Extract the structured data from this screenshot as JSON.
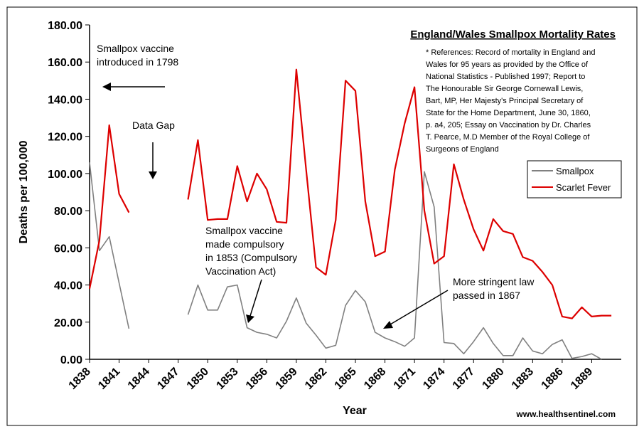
{
  "chart_data": {
    "type": "line",
    "title": "England/Wales Smallpox Mortality Rates",
    "xlabel": "Year",
    "ylabel": "Deaths per 100,000",
    "xlim": [
      1838,
      1892
    ],
    "ylim": [
      0,
      180
    ],
    "yticks": [
      "0.00",
      "20.00",
      "40.00",
      "60.00",
      "80.00",
      "100.00",
      "120.00",
      "140.00",
      "160.00",
      "180.00"
    ],
    "xticks": [
      "1838",
      "1841",
      "1844",
      "1847",
      "1850",
      "1853",
      "1856",
      "1859",
      "1862",
      "1865",
      "1868",
      "1871",
      "1874",
      "1877",
      "1880",
      "1883",
      "1886",
      "1889"
    ],
    "grid": "none",
    "legend_position": "right",
    "series": [
      {
        "name": "Smallpox",
        "color": "#808080",
        "points": [
          [
            1838,
            106
          ],
          [
            1839,
            58.5
          ],
          [
            1840,
            66
          ],
          [
            1841,
            41
          ],
          [
            1842,
            16.5
          ],
          [
            1848,
            24
          ],
          [
            1849,
            40
          ],
          [
            1850,
            26.5
          ],
          [
            1851,
            26.5
          ],
          [
            1852,
            39
          ],
          [
            1853,
            40
          ],
          [
            1854,
            17
          ],
          [
            1855,
            14.5
          ],
          [
            1856,
            13.5
          ],
          [
            1857,
            11.5
          ],
          [
            1858,
            20.5
          ],
          [
            1859,
            33
          ],
          [
            1860,
            19.5
          ],
          [
            1861,
            13
          ],
          [
            1862,
            6
          ],
          [
            1863,
            7.5
          ],
          [
            1864,
            29
          ],
          [
            1865,
            37
          ],
          [
            1866,
            31
          ],
          [
            1867,
            14.5
          ],
          [
            1868,
            11.5
          ],
          [
            1869,
            9.5
          ],
          [
            1870,
            7
          ],
          [
            1871,
            11.5
          ],
          [
            1872,
            101
          ],
          [
            1873,
            82
          ],
          [
            1874,
            9
          ],
          [
            1875,
            8.5
          ],
          [
            1876,
            3
          ],
          [
            1877,
            9.5
          ],
          [
            1878,
            17
          ],
          [
            1879,
            8.5
          ],
          [
            1880,
            2
          ],
          [
            1881,
            2
          ],
          [
            1882,
            11.5
          ],
          [
            1883,
            4.5
          ],
          [
            1884,
            3
          ],
          [
            1885,
            8
          ],
          [
            1886,
            10.5
          ],
          [
            1887,
            0.5
          ],
          [
            1888,
            1.5
          ],
          [
            1889,
            3
          ],
          [
            1890,
            0
          ]
        ]
      },
      {
        "name": "Scarlet Fever",
        "color": "#dd0000",
        "points": [
          [
            1838,
            38
          ],
          [
            1839,
            64
          ],
          [
            1840,
            126
          ],
          [
            1841,
            89
          ],
          [
            1842,
            79
          ],
          [
            1848,
            86
          ],
          [
            1849,
            118
          ],
          [
            1850,
            75
          ],
          [
            1851,
            75.5
          ],
          [
            1852,
            75.5
          ],
          [
            1853,
            104
          ],
          [
            1854,
            85
          ],
          [
            1855,
            100
          ],
          [
            1856,
            91.5
          ],
          [
            1857,
            74
          ],
          [
            1858,
            73.5
          ],
          [
            1859,
            156
          ],
          [
            1860,
            102
          ],
          [
            1861,
            49.5
          ],
          [
            1862,
            45.5
          ],
          [
            1863,
            75
          ],
          [
            1864,
            150
          ],
          [
            1865,
            144.5
          ],
          [
            1866,
            85
          ],
          [
            1867,
            55.5
          ],
          [
            1868,
            58
          ],
          [
            1869,
            102
          ],
          [
            1870,
            127
          ],
          [
            1871,
            146.5
          ],
          [
            1872,
            80
          ],
          [
            1873,
            51.5
          ],
          [
            1874,
            55.5
          ],
          [
            1875,
            105
          ],
          [
            1876,
            86
          ],
          [
            1877,
            70
          ],
          [
            1878,
            58.5
          ],
          [
            1879,
            75.5
          ],
          [
            1880,
            69
          ],
          [
            1881,
            67.5
          ],
          [
            1882,
            55
          ],
          [
            1883,
            53
          ],
          [
            1884,
            47
          ],
          [
            1885,
            40
          ],
          [
            1886,
            23
          ],
          [
            1887,
            22
          ],
          [
            1888,
            28
          ],
          [
            1889,
            23
          ],
          [
            1890,
            23.5
          ],
          [
            1891,
            23.5
          ]
        ]
      }
    ],
    "annotations": [
      {
        "id": "vaccine_introduced",
        "lines": [
          "Smallpox vaccine",
          "introduced in 1798"
        ]
      },
      {
        "id": "data_gap",
        "lines": [
          "Data Gap"
        ]
      },
      {
        "id": "compulsory",
        "lines": [
          "Smallpox vaccine",
          "made compulsory",
          "in 1853 (Compulsory",
          "Vaccination Act)"
        ]
      },
      {
        "id": "stringent",
        "lines": [
          "More stringent law",
          "passed in 1867"
        ]
      }
    ],
    "references": [
      "* References: Record of mortality in England and",
      "Wales for 95 years as provided by the Office of",
      "National Statistics - Published 1997; Report to",
      "The Honourable Sir George Cornewall Lewis,",
      "Bart, MP, Her Majesty's Principal Secretary of",
      "State for the Home Department, June 30, 1860,",
      "p. a4, 205; Essay on Vaccination by Dr. Charles",
      "T. Pearce, M.D Member of the Royal College of",
      "Surgeons of England"
    ],
    "website": "www.healthsentinel.com"
  }
}
